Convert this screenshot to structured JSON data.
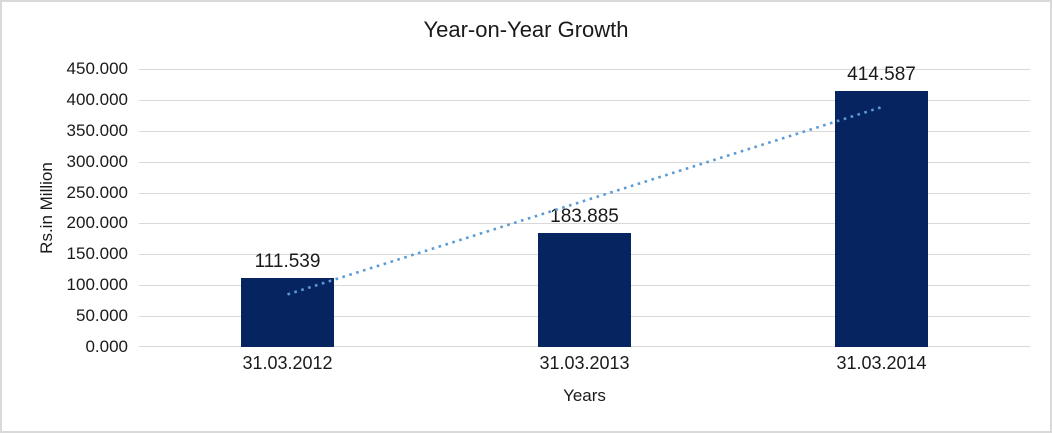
{
  "window": {
    "background_color": "#FFFFFF",
    "border_color": "#D9D9D9"
  },
  "chart_data": {
    "type": "bar",
    "title": "Year-on-Year Growth",
    "xlabel": "Years",
    "ylabel": "Rs.in Million",
    "categories": [
      "31.03.2012",
      "31.03.2013",
      "31.03.2014"
    ],
    "values": [
      111.539,
      183.885,
      414.587
    ],
    "value_labels": [
      "111.539",
      "183.885",
      "414.587"
    ],
    "ylim": [
      0,
      450
    ],
    "ytick_step": 50,
    "ytick_values": [
      450,
      400,
      350,
      300,
      250,
      200,
      150,
      100,
      50,
      0
    ],
    "ytick_labels": [
      "450.000",
      "400.000",
      "350.000",
      "300.000",
      "250.000",
      "200.000",
      "150.000",
      "100.000",
      "50.000",
      "0.000"
    ],
    "grid": true,
    "legend": "none",
    "colors": {
      "bar": "#062460",
      "trendline": "#5B9BD5",
      "gridline": "#D9D9D9",
      "text": "#1A1A1A"
    },
    "trendline": {
      "type": "linear",
      "style": "dotted"
    }
  }
}
